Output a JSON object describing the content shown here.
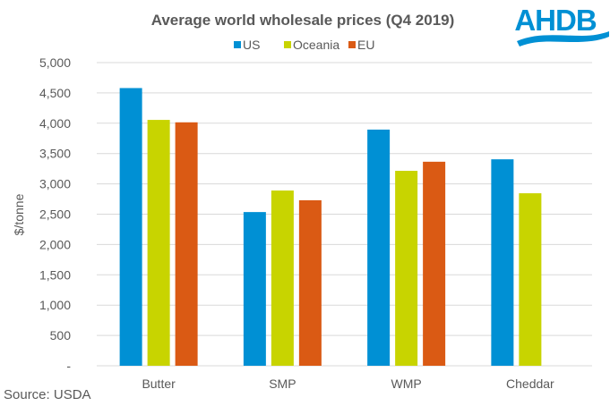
{
  "logo": {
    "text": "AHDB",
    "color": "#0090D4"
  },
  "source": "Source:  USDA",
  "chart_data": {
    "type": "bar",
    "title": "Average world wholesale prices (Q4 2019)",
    "xlabel": "",
    "ylabel": "$/tonne",
    "ylim": [
      0,
      5000
    ],
    "yticks": [
      0,
      500,
      1000,
      1500,
      2000,
      2500,
      3000,
      3500,
      4000,
      4500,
      5000
    ],
    "ytick_labels": [
      "-",
      "500",
      "1,000",
      "1,500",
      "2,000",
      "2,500",
      "3,000",
      "3,500",
      "4,000",
      "4,500",
      "5,000"
    ],
    "grid": true,
    "legend_position": "top-center",
    "categories": [
      "Butter",
      "SMP",
      "WMP",
      "Cheddar"
    ],
    "series": [
      {
        "name": "US",
        "color": "#0090D4",
        "values": [
          4580,
          2535,
          3895,
          3405
        ]
      },
      {
        "name": "Oceania",
        "color": "#C8D400",
        "values": [
          4055,
          2890,
          3215,
          2845
        ]
      },
      {
        "name": "EU",
        "color": "#DA5A14",
        "values": [
          4015,
          2730,
          3365,
          null
        ]
      }
    ]
  }
}
